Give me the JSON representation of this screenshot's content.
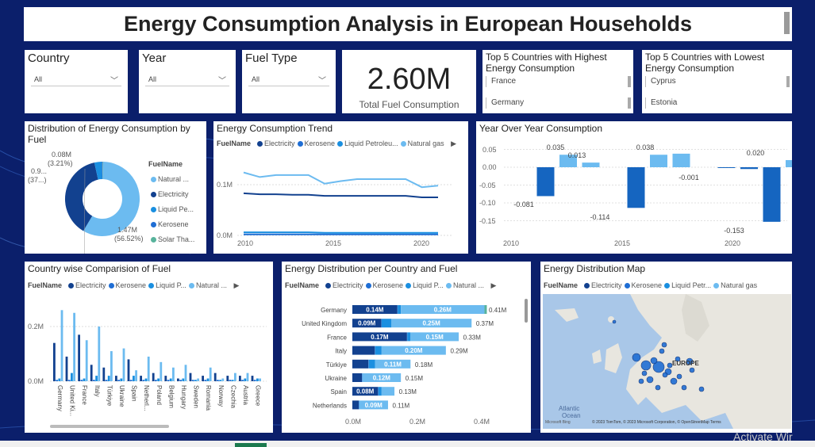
{
  "header": {
    "title": "Energy Consumption Analysis in European Households"
  },
  "colors": {
    "electricity": "#12418f",
    "kerosene": "#1f6ed4",
    "liquid_petroleum": "#1a8fe0",
    "natural_gas": "#6cbbf0",
    "solar_thermal": "#58b39c",
    "bg": "#0b1f6b"
  },
  "slicers": [
    {
      "label": "Country",
      "value": "All"
    },
    {
      "label": "Year",
      "value": "All"
    },
    {
      "label": "Fuel Type",
      "value": "All"
    }
  ],
  "kpi": {
    "value": "2.60M",
    "label": "Total Fuel Consumption"
  },
  "top_highest": {
    "title": "Top 5 Countries with Highest Energy Consumption",
    "items": [
      "France",
      "Germany"
    ]
  },
  "top_lowest": {
    "title": "Top 5 Countries with Lowest Energy Consumption",
    "items": [
      "Cyprus",
      "Estonia"
    ]
  },
  "donut": {
    "title": "Distribution of Energy Consumption by Fuel",
    "legend_title": "FuelName",
    "legend": [
      "Natural ...",
      "Electricity",
      "Liquid Pe...",
      "Kerosene",
      "Solar Tha..."
    ],
    "labels": {
      "top_value": "0.08M",
      "top_pct": "(3.21%)",
      "left_value": "0.9...",
      "left_pct": "(37...)",
      "bottom_value": "1.47M",
      "bottom_pct": "(56.52%)"
    }
  },
  "trend": {
    "title": "Energy Consumption Trend",
    "legend_title": "FuelName",
    "legend": [
      "Electricity",
      "Kerosene",
      "Liquid Petroleu...",
      "Natural gas"
    ],
    "y_ticks": [
      "0.1M",
      "0.0M"
    ],
    "x_ticks": [
      "2010",
      "2015",
      "2020"
    ]
  },
  "yoy": {
    "title": "Year Over Year Consumption",
    "y_ticks": [
      "0.05",
      "0.00",
      "-0.05",
      "-0.10",
      "-0.15"
    ],
    "x_ticks": [
      "2010",
      "2015",
      "2020"
    ],
    "labels": [
      "-0.081",
      "0.035",
      "0.013",
      "-0.114",
      "0.038",
      "-0.001",
      "-0.153",
      "0.020"
    ]
  },
  "country_fuel": {
    "title": "Country wise Comparision of Fuel",
    "legend_title": "FuelName",
    "legend": [
      "Electricity",
      "Kerosene",
      "Liquid P...",
      "Natural ..."
    ],
    "y_ticks": [
      "0.2M",
      "0.0M"
    ],
    "countries": [
      "Germany",
      "United Ki...",
      "France",
      "Italy",
      "Türkiye",
      "Ukraine",
      "Spain",
      "Netherl...",
      "Poland",
      "Belgium",
      "Hungary",
      "Sweden",
      "Romania",
      "Norway",
      "Czechia",
      "Austria",
      "Greece"
    ]
  },
  "dist": {
    "title": "Energy Distribution per Country and Fuel",
    "legend_title": "FuelName",
    "legend": [
      "Electricity",
      "Kerosene",
      "Liquid P...",
      "Natural ..."
    ],
    "x_ticks": [
      "0.0M",
      "0.2M",
      "0.4M"
    ],
    "rows": [
      {
        "country": "Germany",
        "elec_label": "0.14M",
        "gas_label": "0.26M",
        "total": "0.41M"
      },
      {
        "country": "United Kingdom",
        "elec_label": "0.09M",
        "gas_label": "0.25M",
        "total": "0.37M"
      },
      {
        "country": "France",
        "elec_label": "0.17M",
        "gas_label": "0.15M",
        "total": "0.33M"
      },
      {
        "country": "Italy",
        "elec_label": "",
        "gas_label": "0.20M",
        "total": "0.29M"
      },
      {
        "country": "Türkiye",
        "elec_label": "",
        "gas_label": "0.11M",
        "total": "0.18M"
      },
      {
        "country": "Ukraine",
        "elec_label": "",
        "gas_label": "0.12M",
        "total": "0.15M"
      },
      {
        "country": "Spain",
        "elec_label": "0.08M",
        "gas_label": "",
        "total": "0.13M"
      },
      {
        "country": "Netherlands",
        "elec_label": "",
        "gas_label": "0.09M",
        "total": "0.11M"
      }
    ]
  },
  "map": {
    "title": "Energy Distribution Map",
    "legend_title": "FuelName",
    "legend": [
      "Electricity",
      "Kerosene",
      "Liquid Petr...",
      "Natural gas"
    ],
    "region_label": "EUROPE",
    "ocean_label_1": "Atlantic",
    "ocean_label_2": "Ocean",
    "bing": "Microsoft Bing",
    "copyright": "© 2023 TomTom, © 2023 Microsoft Corporation, © OpenStreetMap  Terms"
  },
  "watermark": "Activate Wir",
  "chart_data": [
    {
      "type": "pie",
      "title": "Distribution of Energy Consumption by Fuel",
      "categories": [
        "Natural gas",
        "Electricity",
        "Liquid Petroleum",
        "Kerosene",
        "Solar Thermal"
      ],
      "values": [
        1.47,
        0.96,
        0.08,
        0.01,
        0.005
      ]
    },
    {
      "type": "line",
      "title": "Energy Consumption Trend",
      "x": [
        2009,
        2010,
        2011,
        2012,
        2013,
        2014,
        2015,
        2016,
        2017,
        2018,
        2019,
        2020,
        2021
      ],
      "series": [
        {
          "name": "Electricity",
          "values": [
            0.083,
            0.081,
            0.081,
            0.08,
            0.08,
            0.078,
            0.078,
            0.078,
            0.078,
            0.078,
            0.078,
            0.075,
            0.075
          ]
        },
        {
          "name": "Kerosene",
          "values": [
            0.002,
            0.002,
            0.002,
            0.002,
            0.002,
            0.002,
            0.002,
            0.002,
            0.002,
            0.002,
            0.002,
            0.002,
            0.002
          ]
        },
        {
          "name": "Liquid Petroleum",
          "values": [
            0.006,
            0.006,
            0.006,
            0.006,
            0.006,
            0.005,
            0.005,
            0.005,
            0.005,
            0.005,
            0.005,
            0.005,
            0.005
          ]
        },
        {
          "name": "Natural gas",
          "values": [
            0.124,
            0.115,
            0.119,
            0.119,
            0.119,
            0.102,
            0.107,
            0.111,
            0.111,
            0.111,
            0.111,
            0.095,
            0.098
          ]
        }
      ],
      "ylim": [
        0,
        0.14
      ]
    },
    {
      "type": "bar",
      "title": "Year Over Year Consumption",
      "categories": [
        2009,
        2010,
        2011,
        2012,
        2013,
        2014,
        2015,
        2016,
        2017,
        2018,
        2019,
        2020,
        2021
      ],
      "values": [
        0,
        -0.081,
        0.035,
        0.013,
        0,
        -0.114,
        0.035,
        0.038,
        0,
        -0.001,
        -0.005,
        -0.153,
        0.02
      ],
      "ylim": [
        -0.16,
        0.06
      ]
    },
    {
      "type": "bar",
      "title": "Country wise Comparision of Fuel",
      "categories": [
        "Germany",
        "United Kingdom",
        "France",
        "Italy",
        "Türkiye",
        "Ukraine",
        "Spain",
        "Netherlands",
        "Poland",
        "Belgium",
        "Hungary",
        "Sweden",
        "Romania",
        "Norway",
        "Czechia",
        "Austria",
        "Greece"
      ],
      "series": [
        {
          "name": "Electricity",
          "values": [
            0.14,
            0.09,
            0.17,
            0.06,
            0.05,
            0.02,
            0.08,
            0.02,
            0.03,
            0.02,
            0.01,
            0.03,
            0.02,
            0.03,
            0.02,
            0.02,
            0.02
          ]
        },
        {
          "name": "Kerosene",
          "values": [
            0.005,
            0.005,
            0.005,
            0.005,
            0.005,
            0.005,
            0.005,
            0.005,
            0.005,
            0.005,
            0.005,
            0.005,
            0.005,
            0.005,
            0.005,
            0.005,
            0.005
          ]
        },
        {
          "name": "Liquid Petroleum",
          "values": [
            0.01,
            0.03,
            0.01,
            0.02,
            0.02,
            0.01,
            0.02,
            0.01,
            0.01,
            0.01,
            0.01,
            0.005,
            0.01,
            0.005,
            0.005,
            0.01,
            0.01
          ]
        },
        {
          "name": "Natural gas",
          "values": [
            0.26,
            0.25,
            0.15,
            0.2,
            0.11,
            0.12,
            0.04,
            0.09,
            0.07,
            0.05,
            0.06,
            0.01,
            0.05,
            0.01,
            0.03,
            0.03,
            0.01
          ]
        }
      ],
      "ylim": [
        0,
        0.3
      ]
    },
    {
      "type": "bar",
      "title": "Energy Distribution per Country and Fuel",
      "categories": [
        "Germany",
        "United Kingdom",
        "France",
        "Italy",
        "Türkiye",
        "Ukraine",
        "Spain",
        "Netherlands"
      ],
      "series": [
        {
          "name": "Electricity",
          "values": [
            0.14,
            0.09,
            0.17,
            0.07,
            0.05,
            0.03,
            0.08,
            0.02
          ]
        },
        {
          "name": "Kerosene",
          "values": [
            0.001,
            0.001,
            0.001,
            0.001,
            0.001,
            0.001,
            0.001,
            0.001
          ]
        },
        {
          "name": "Liquid Petroleum",
          "values": [
            0.01,
            0.03,
            0.01,
            0.02,
            0.02,
            0.0,
            0.01,
            0.0
          ]
        },
        {
          "name": "Natural gas",
          "values": [
            0.26,
            0.25,
            0.15,
            0.2,
            0.11,
            0.12,
            0.04,
            0.09
          ]
        }
      ],
      "totals": [
        0.41,
        0.37,
        0.33,
        0.29,
        0.18,
        0.15,
        0.13,
        0.11
      ],
      "xlim": [
        0,
        0.45
      ]
    }
  ]
}
